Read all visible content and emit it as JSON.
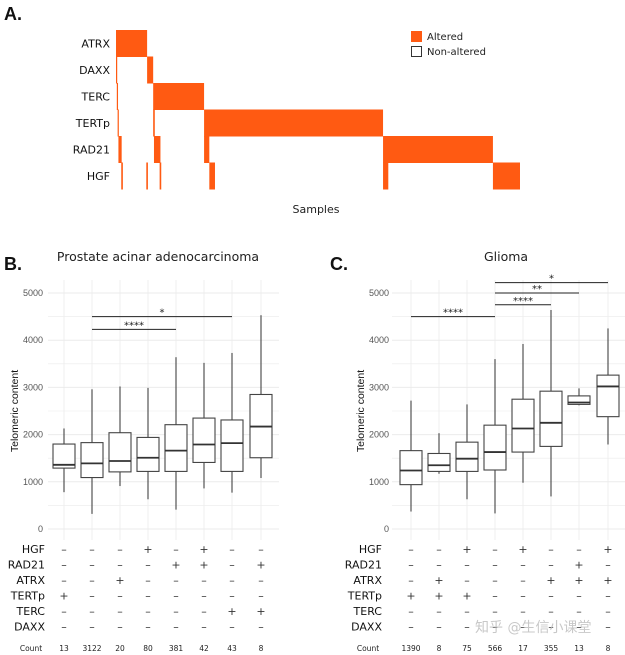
{
  "colors": {
    "altered": "#FF5A12",
    "box": "#444444",
    "grid": "#EBEBEB",
    "sig": "#222222"
  },
  "watermark": "知乎 @生信小课堂",
  "chart_data": [
    {
      "type": "heatmap",
      "panel": "A.",
      "title": "",
      "xlabel": "Samples",
      "genes": [
        "ATRX",
        "DAXX",
        "TERC",
        "TERTp",
        "RAD21",
        "HGF"
      ],
      "legend": [
        {
          "label": "Altered"
        },
        {
          "label": "Non-altered"
        }
      ],
      "legend_position": "top-right",
      "sample_total": 100,
      "blocks": [
        {
          "gene": "ATRX",
          "start": 0.0,
          "end": 7.7
        },
        {
          "gene": "DAXX",
          "start": 7.7,
          "end": 9.2
        },
        {
          "gene": "TERC",
          "start": 9.2,
          "end": 21.8
        },
        {
          "gene": "TERTp",
          "start": 21.8,
          "end": 66.1
        },
        {
          "gene": "RAD21",
          "start": 66.1,
          "end": 93.3
        },
        {
          "gene": "HGF",
          "start": 93.3,
          "end": 100.0
        },
        {
          "gene": "DAXX",
          "start": 0.0,
          "end": 0.3
        },
        {
          "gene": "TERC",
          "start": 0.2,
          "end": 0.5
        },
        {
          "gene": "TERTp",
          "start": 0.4,
          "end": 0.7
        },
        {
          "gene": "RAD21",
          "start": 0.6,
          "end": 1.4
        },
        {
          "gene": "HGF",
          "start": 1.3,
          "end": 1.7
        },
        {
          "gene": "TERTp",
          "start": 9.2,
          "end": 9.6
        },
        {
          "gene": "RAD21",
          "start": 9.4,
          "end": 11.0
        },
        {
          "gene": "HGF",
          "start": 7.5,
          "end": 7.9
        },
        {
          "gene": "HGF",
          "start": 10.8,
          "end": 11.2
        },
        {
          "gene": "RAD21",
          "start": 21.8,
          "end": 23.1
        },
        {
          "gene": "HGF",
          "start": 23.1,
          "end": 24.5
        },
        {
          "gene": "HGF",
          "start": 66.1,
          "end": 67.4
        }
      ]
    },
    {
      "type": "boxplot",
      "panel": "B.",
      "title": "Prostate acinar adenocarcinoma",
      "xlabel": "",
      "ylabel": "Telomeric content",
      "ylim": [
        0,
        5000
      ],
      "yticks": [
        0,
        1000,
        2000,
        3000,
        4000,
        5000
      ],
      "grid": true,
      "boxes": [
        {
          "min": 780,
          "q1": 1290,
          "median": 1360,
          "q3": 1800,
          "max": 2130
        },
        {
          "min": 320,
          "q1": 1090,
          "median": 1390,
          "q3": 1830,
          "max": 2960
        },
        {
          "min": 910,
          "q1": 1210,
          "median": 1440,
          "q3": 2040,
          "max": 3020
        },
        {
          "min": 630,
          "q1": 1220,
          "median": 1510,
          "q3": 1940,
          "max": 2990
        },
        {
          "min": 410,
          "q1": 1220,
          "median": 1660,
          "q3": 2210,
          "max": 3640
        },
        {
          "min": 860,
          "q1": 1410,
          "median": 1790,
          "q3": 2350,
          "max": 3520
        },
        {
          "min": 770,
          "q1": 1220,
          "median": 1820,
          "q3": 2310,
          "max": 3730
        },
        {
          "min": 1080,
          "q1": 1510,
          "median": 2170,
          "q3": 2850,
          "max": 4530
        }
      ],
      "significance": [
        {
          "from": 2,
          "to": 5,
          "y": 4230,
          "label": "****"
        },
        {
          "from": 2,
          "to": 7,
          "y": 4500,
          "label": "*"
        }
      ],
      "table": {
        "rows": [
          {
            "gene": "HGF",
            "values": [
              "-",
              "-",
              "-",
              "+",
              "-",
              "+",
              "-",
              "-"
            ]
          },
          {
            "gene": "RAD21",
            "values": [
              "-",
              "-",
              "-",
              "-",
              "+",
              "+",
              "-",
              "+"
            ]
          },
          {
            "gene": "ATRX",
            "values": [
              "-",
              "-",
              "+",
              "-",
              "-",
              "-",
              "-",
              "-"
            ]
          },
          {
            "gene": "TERTp",
            "values": [
              "+",
              "-",
              "-",
              "-",
              "-",
              "-",
              "-",
              "-"
            ]
          },
          {
            "gene": "TERC",
            "values": [
              "-",
              "-",
              "-",
              "-",
              "-",
              "-",
              "+",
              "+"
            ]
          },
          {
            "gene": "DAXX",
            "values": [
              "-",
              "-",
              "-",
              "-",
              "-",
              "-",
              "-",
              "-"
            ]
          }
        ],
        "count_label": "Count",
        "counts": [
          "13",
          "3122",
          "20",
          "80",
          "381",
          "42",
          "43",
          "8"
        ]
      }
    },
    {
      "type": "boxplot",
      "panel": "C.",
      "title": "Glioma",
      "xlabel": "",
      "ylabel": "Telomeric content",
      "ylim": [
        0,
        5000
      ],
      "yticks": [
        0,
        1000,
        2000,
        3000,
        4000,
        5000
      ],
      "grid": true,
      "boxes": [
        {
          "min": 370,
          "q1": 940,
          "median": 1240,
          "q3": 1660,
          "max": 2720
        },
        {
          "min": 1170,
          "q1": 1220,
          "median": 1350,
          "q3": 1600,
          "max": 2030
        },
        {
          "min": 630,
          "q1": 1220,
          "median": 1490,
          "q3": 1840,
          "max": 2640
        },
        {
          "min": 330,
          "q1": 1250,
          "median": 1630,
          "q3": 2200,
          "max": 3600
        },
        {
          "min": 980,
          "q1": 1630,
          "median": 2130,
          "q3": 2750,
          "max": 3920
        },
        {
          "min": 690,
          "q1": 1750,
          "median": 2250,
          "q3": 2920,
          "max": 4640
        },
        {
          "min": 2620,
          "q1": 2640,
          "median": 2680,
          "q3": 2820,
          "max": 2980
        },
        {
          "min": 1790,
          "q1": 2380,
          "median": 3020,
          "q3": 3260,
          "max": 4250
        }
      ],
      "significance": [
        {
          "from": 1,
          "to": 4,
          "y": 4500,
          "label": "****"
        },
        {
          "from": 4,
          "to": 6,
          "y": 4750,
          "label": "****"
        },
        {
          "from": 4,
          "to": 7,
          "y": 5000,
          "label": "**"
        },
        {
          "from": 4,
          "to": 8,
          "y": 5220,
          "label": "*"
        }
      ],
      "table": {
        "rows": [
          {
            "gene": "HGF",
            "values": [
              "-",
              "-",
              "+",
              "-",
              "+",
              "-",
              "-",
              "+"
            ]
          },
          {
            "gene": "RAD21",
            "values": [
              "-",
              "-",
              "-",
              "-",
              "-",
              "-",
              "+",
              "-"
            ]
          },
          {
            "gene": "ATRX",
            "values": [
              "-",
              "+",
              "-",
              "-",
              "-",
              "+",
              "+",
              "+"
            ]
          },
          {
            "gene": "TERTp",
            "values": [
              "+",
              "+",
              "+",
              "-",
              "-",
              "-",
              "-",
              "-"
            ]
          },
          {
            "gene": "TERC",
            "values": [
              "-",
              "-",
              "-",
              "-",
              "-",
              "-",
              "-",
              "-"
            ]
          },
          {
            "gene": "DAXX",
            "values": [
              "-",
              "-",
              "-",
              "-",
              "-",
              "-",
              "-",
              "-"
            ]
          }
        ],
        "count_label": "Count",
        "counts": [
          "1390",
          "8",
          "75",
          "566",
          "17",
          "355",
          "13",
          "8"
        ]
      }
    }
  ]
}
